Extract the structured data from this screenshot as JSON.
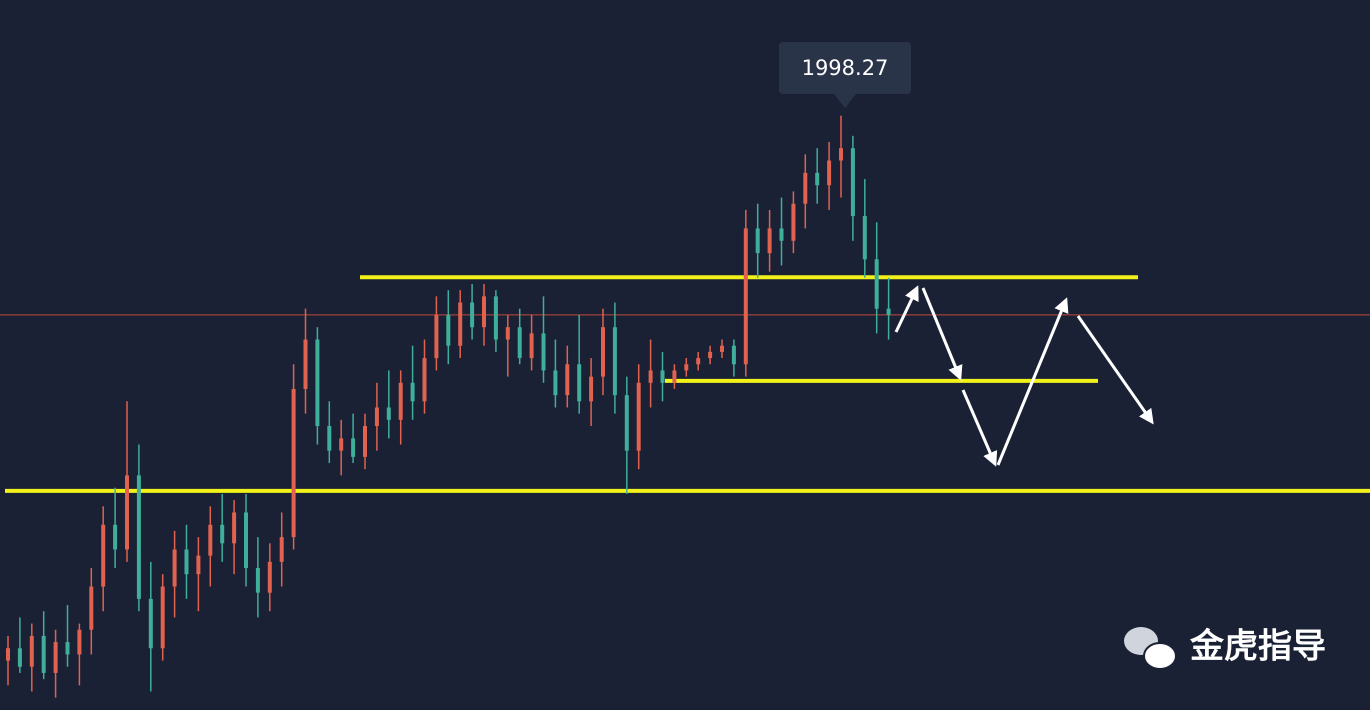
{
  "chart_data": {
    "type": "candlestick",
    "high_label": "1998.27",
    "ylim": [
      1902,
      2017
    ],
    "up_color": "#e0624f",
    "down_color": "#3fae9a",
    "open": [
      1910,
      1912,
      1909,
      1914,
      1908,
      1913,
      1911,
      1915,
      1922,
      1932,
      1928,
      1940,
      1920,
      1912,
      1922,
      1928,
      1924,
      1927,
      1932,
      1929,
      1934,
      1925,
      1921,
      1926,
      1930,
      1954,
      1962,
      1948,
      1944,
      1946,
      1943,
      1948,
      1951,
      1949,
      1955,
      1952,
      1959,
      1966,
      1961,
      1968,
      1964,
      1969,
      1962,
      1964,
      1959,
      1963,
      1957,
      1953,
      1958,
      1952,
      1956,
      1964,
      1953,
      1944,
      1955,
      1957,
      1955,
      1957,
      1958,
      1959,
      1960,
      1961,
      1958,
      1980,
      1976,
      1980,
      1978,
      1984,
      1989,
      1987,
      1991,
      1993,
      1982,
      1975,
      1967
    ],
    "high": [
      1914,
      1917,
      1916,
      1918,
      1915,
      1919,
      1916,
      1925,
      1935,
      1938,
      1952,
      1945,
      1926,
      1924,
      1931,
      1932,
      1930,
      1935,
      1937,
      1936,
      1937,
      1930,
      1929,
      1934,
      1958,
      1967,
      1964,
      1952,
      1949,
      1950,
      1950,
      1955,
      1957,
      1957,
      1961,
      1962,
      1969,
      1970,
      1970,
      1971,
      1971,
      1970,
      1966,
      1967,
      1966,
      1969,
      1962,
      1961,
      1966,
      1959,
      1967,
      1968,
      1956,
      1958,
      1962,
      1960,
      1958,
      1959,
      1960,
      1961,
      1962,
      1962,
      1983,
      1984,
      1983,
      1985,
      1986,
      1992,
      1993,
      1994,
      1998.27,
      1995,
      1988,
      1981,
      1972
    ],
    "low": [
      1906,
      1908,
      1905,
      1907,
      1904,
      1909,
      1906,
      1911,
      1918,
      1925,
      1926,
      1918,
      1905,
      1910,
      1917,
      1920,
      1918,
      1922,
      1926,
      1924,
      1922,
      1917,
      1918,
      1922,
      1928,
      1950,
      1945,
      1942,
      1940,
      1942,
      1941,
      1944,
      1946,
      1945,
      1949,
      1950,
      1957,
      1958,
      1959,
      1962,
      1961,
      1960,
      1956,
      1958,
      1957,
      1955,
      1951,
      1951,
      1950,
      1948,
      1953,
      1950,
      1937,
      1941,
      1951,
      1952,
      1954,
      1956,
      1957,
      1958,
      1959,
      1956,
      1956,
      1972,
      1973,
      1974,
      1976,
      1980,
      1984,
      1983,
      1985,
      1978,
      1972,
      1963,
      1962
    ],
    "close": [
      1912,
      1909,
      1914,
      1908,
      1913,
      1911,
      1915,
      1922,
      1932,
      1928,
      1940,
      1920,
      1912,
      1922,
      1928,
      1924,
      1927,
      1932,
      1929,
      1934,
      1925,
      1921,
      1926,
      1930,
      1954,
      1962,
      1948,
      1944,
      1946,
      1943,
      1948,
      1951,
      1949,
      1955,
      1952,
      1959,
      1966,
      1961,
      1968,
      1964,
      1969,
      1962,
      1964,
      1959,
      1963,
      1957,
      1953,
      1958,
      1952,
      1956,
      1964,
      1953,
      1944,
      1955,
      1957,
      1955,
      1957,
      1958,
      1959,
      1960,
      1961,
      1958,
      1980,
      1976,
      1980,
      1978,
      1984,
      1989,
      1987,
      1991,
      1993,
      1982,
      1975,
      1967,
      1966
    ],
    "levels": [
      {
        "value": 1966.0,
        "color": "#c0483a"
      },
      {
        "value": 1972.1,
        "color": "#f2f21a"
      },
      {
        "value": 1955.3,
        "color": "#f2f21a"
      },
      {
        "value": 1937.5,
        "color": "#f2f21a"
      }
    ]
  },
  "watermark": "金虎指导"
}
